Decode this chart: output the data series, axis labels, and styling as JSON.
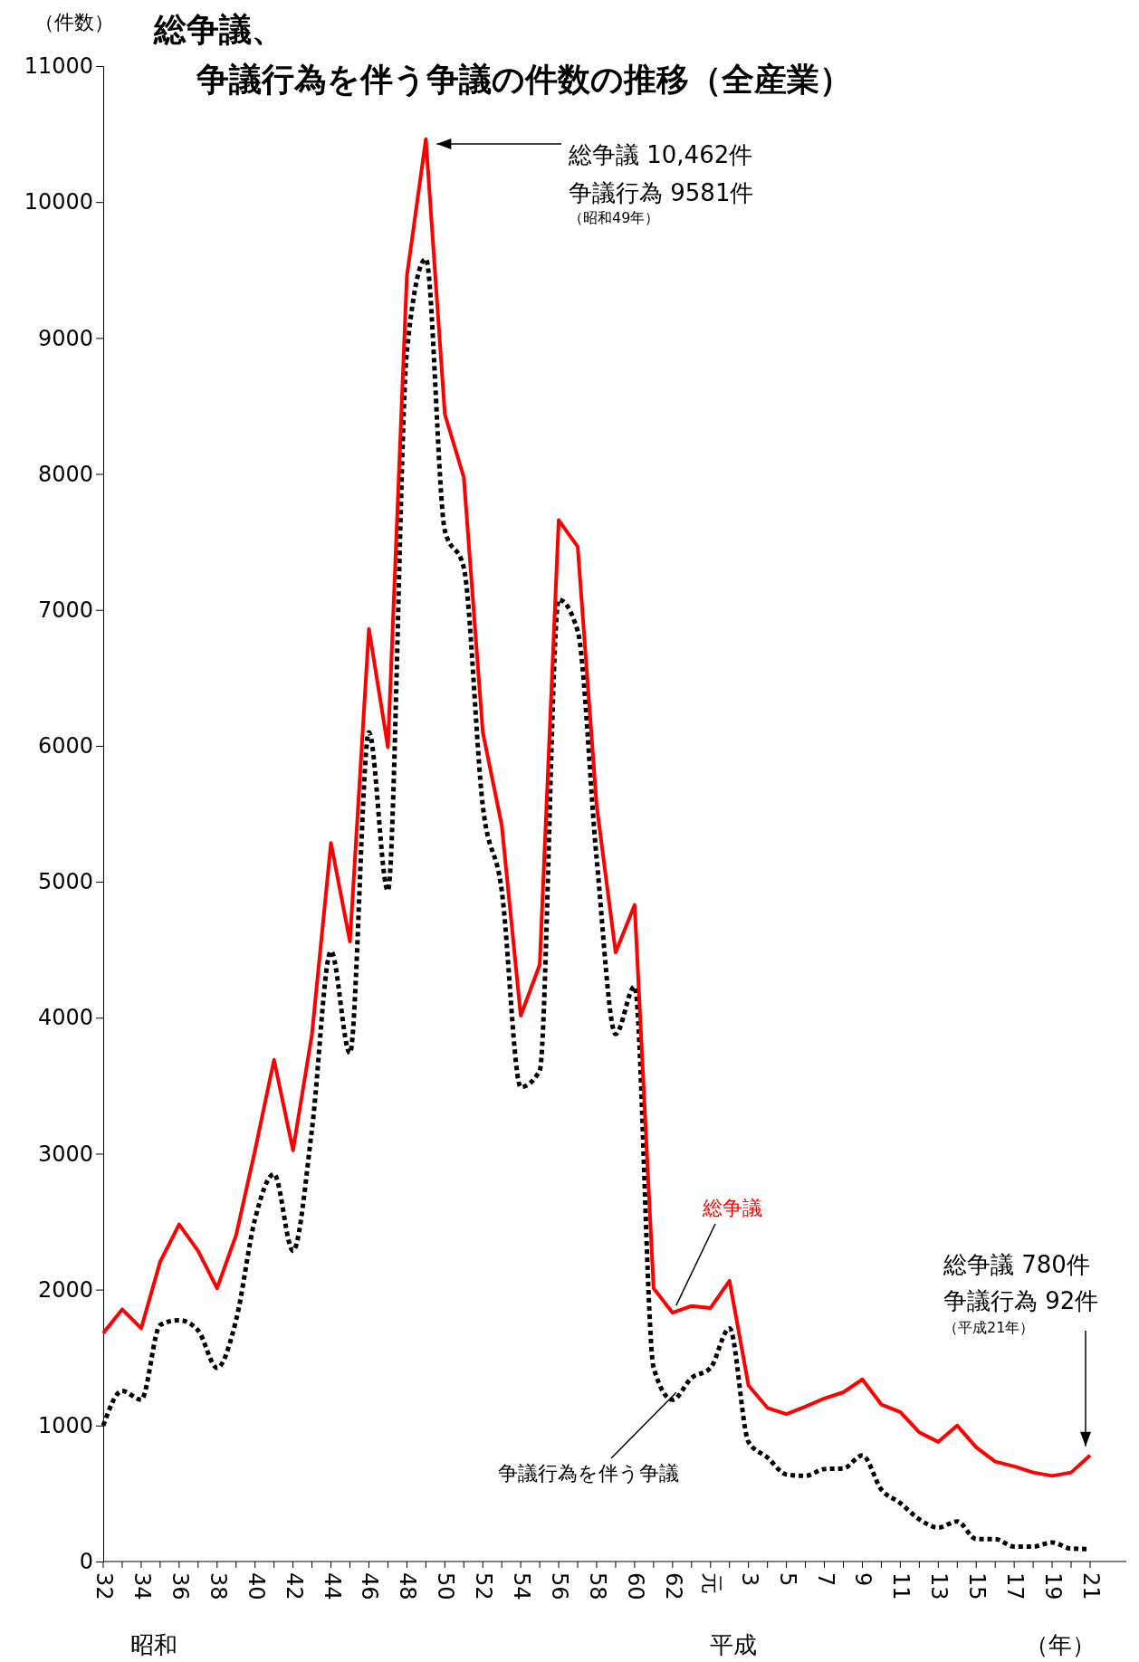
{
  "chart_data": {
    "type": "line",
    "title": "総争議、争議行為を伴う争議の件数の推移（全産業）",
    "ylabel": "（件数）",
    "categories": [
      "32",
      null,
      "34",
      null,
      "36",
      null,
      "38",
      null,
      "40",
      null,
      "42",
      null,
      "44",
      null,
      "46",
      null,
      "48",
      null,
      "50",
      null,
      "52",
      null,
      "54",
      null,
      "56",
      null,
      "58",
      null,
      "60",
      null,
      "62",
      null,
      "元",
      null,
      "3",
      null,
      "5",
      null,
      "7",
      null,
      "9",
      null,
      "11",
      null,
      "13",
      null,
      "15",
      null,
      "17",
      null,
      "19",
      null,
      "21"
    ],
    "series": [
      {
        "name": "総争議",
        "color": "#ff0000",
        "line_style": "solid",
        "values": [
          1680,
          1855,
          1715,
          2205,
          2480,
          2285,
          2010,
          2400,
          3025,
          3690,
          3025,
          3880,
          5285,
          4560,
          6860,
          5990,
          9455,
          10462,
          8440,
          7975,
          6100,
          5415,
          4015,
          4390,
          7660,
          7465,
          5560,
          4480,
          4830,
          2010,
          1830,
          1880,
          1865,
          2065,
          1295,
          1130,
          1085,
          1140,
          1200,
          1245,
          1340,
          1155,
          1100,
          950,
          880,
          1000,
          840,
          735,
          700,
          655,
          630,
          655,
          780
        ]
      },
      {
        "name": "争議行為を伴う争議",
        "color": "#000000",
        "line_style": "dotted",
        "values": [
          1000,
          1255,
          1190,
          1740,
          1775,
          1700,
          1425,
          1775,
          2520,
          2850,
          2285,
          3180,
          4490,
          3740,
          6100,
          4935,
          8900,
          9581,
          7585,
          7310,
          5560,
          4935,
          3490,
          3610,
          7075,
          6845,
          5170,
          3880,
          4230,
          1425,
          1190,
          1350,
          1425,
          1715,
          880,
          765,
          640,
          630,
          680,
          685,
          780,
          530,
          430,
          310,
          250,
          295,
          165,
          165,
          110,
          110,
          140,
          95,
          92
        ]
      }
    ],
    "ylim": [
      0,
      11000
    ],
    "yticks": [
      0,
      1000,
      2000,
      3000,
      4000,
      5000,
      6000,
      7000,
      8000,
      9000,
      10000,
      11000
    ],
    "grid": false,
    "legend": false,
    "marker": "none",
    "annotations": [
      "総争議 10,462件",
      "争議行為 9581件",
      "（昭和49年）",
      "総争議 780件",
      "争議行為 92件",
      "（平成21年）",
      "昭和",
      "平成",
      "（年）"
    ]
  }
}
